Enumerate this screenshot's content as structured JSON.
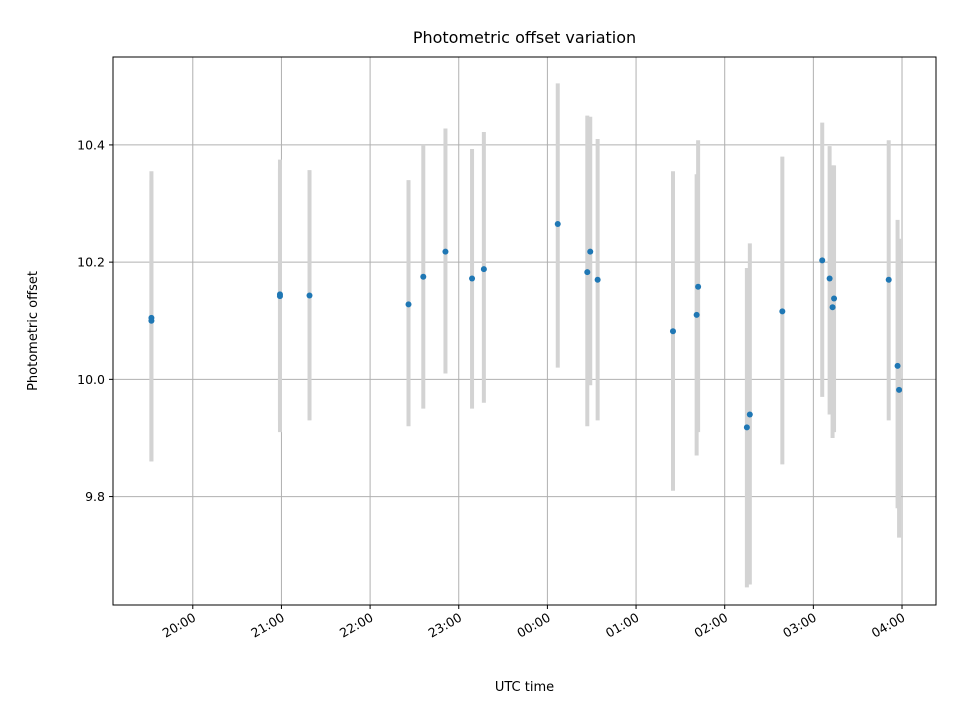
{
  "chart_data": {
    "type": "scatter",
    "title": "Photometric offset variation",
    "xlabel": "UTC time",
    "ylabel": "Photometric offset",
    "x_axis_kind": "time",
    "x_start_date": "2000-01-01",
    "xlim": [
      "2000-01-01T19:06",
      "2000-01-02T04:23"
    ],
    "ylim": [
      9.615,
      10.55
    ],
    "x_ticks": [
      "20:00",
      "21:00",
      "22:00",
      "23:00",
      "00:00",
      "01:00",
      "02:00",
      "03:00",
      "04:00"
    ],
    "y_ticks": [
      9.8,
      10.0,
      10.2,
      10.4
    ],
    "grid": true,
    "point_color": "#1f77b4",
    "errorbar_color": "#d3d3d3",
    "points": [
      {
        "t": "19:32",
        "y": 10.105,
        "lo": 9.86,
        "hi": 10.355
      },
      {
        "t": "19:32",
        "y": 10.1,
        "lo": 9.86,
        "hi": 10.34
      },
      {
        "t": "20:59",
        "y": 10.145,
        "lo": 9.91,
        "hi": 10.375
      },
      {
        "t": "20:59",
        "y": 10.142,
        "lo": 9.93,
        "hi": 10.36
      },
      {
        "t": "21:19",
        "y": 10.143,
        "lo": 9.93,
        "hi": 10.357
      },
      {
        "t": "22:26",
        "y": 10.128,
        "lo": 9.92,
        "hi": 10.34
      },
      {
        "t": "22:36",
        "y": 10.175,
        "lo": 9.95,
        "hi": 10.4
      },
      {
        "t": "22:51",
        "y": 10.218,
        "lo": 10.01,
        "hi": 10.428
      },
      {
        "t": "23:09",
        "y": 10.172,
        "lo": 9.95,
        "hi": 10.393
      },
      {
        "t": "23:17",
        "y": 10.188,
        "lo": 9.96,
        "hi": 10.422
      },
      {
        "t": "00:07",
        "y": 10.265,
        "lo": 10.02,
        "hi": 10.505
      },
      {
        "t": "00:27",
        "y": 10.183,
        "lo": 9.92,
        "hi": 10.45
      },
      {
        "t": "00:29",
        "y": 10.218,
        "lo": 9.99,
        "hi": 10.448
      },
      {
        "t": "00:34",
        "y": 10.17,
        "lo": 9.93,
        "hi": 10.41
      },
      {
        "t": "01:25",
        "y": 10.082,
        "lo": 9.81,
        "hi": 10.355
      },
      {
        "t": "01:41",
        "y": 10.11,
        "lo": 9.87,
        "hi": 10.35
      },
      {
        "t": "01:42",
        "y": 10.158,
        "lo": 9.91,
        "hi": 10.408
      },
      {
        "t": "02:15",
        "y": 9.918,
        "lo": 9.645,
        "hi": 10.19
      },
      {
        "t": "02:17",
        "y": 9.94,
        "lo": 9.65,
        "hi": 10.232
      },
      {
        "t": "02:39",
        "y": 10.116,
        "lo": 9.855,
        "hi": 10.38
      },
      {
        "t": "03:06",
        "y": 10.203,
        "lo": 9.97,
        "hi": 10.438
      },
      {
        "t": "03:11",
        "y": 10.172,
        "lo": 9.94,
        "hi": 10.398
      },
      {
        "t": "03:13",
        "y": 10.123,
        "lo": 9.9,
        "hi": 10.365
      },
      {
        "t": "03:14",
        "y": 10.138,
        "lo": 9.91,
        "hi": 10.365
      },
      {
        "t": "03:51",
        "y": 10.17,
        "lo": 9.93,
        "hi": 10.408
      },
      {
        "t": "03:57",
        "y": 10.023,
        "lo": 9.78,
        "hi": 10.272
      },
      {
        "t": "03:58",
        "y": 9.982,
        "lo": 9.73,
        "hi": 10.24
      }
    ]
  }
}
